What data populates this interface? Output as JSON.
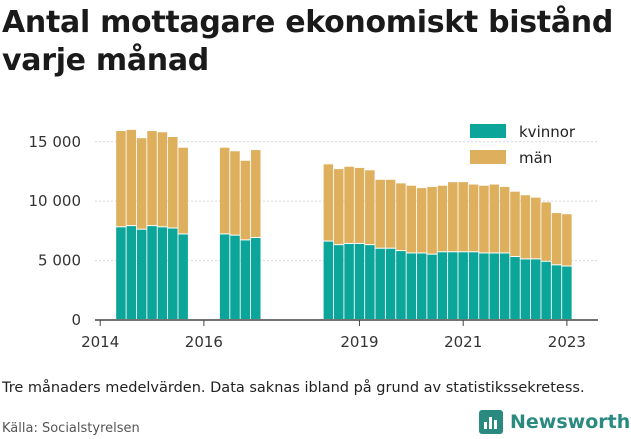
{
  "title": "Antal mottagare ekonomiskt bistånd varje månad",
  "note": "Tre månaders medelvärden. Data saknas ibland på grund av statistikssekretess.",
  "source": "Källa: Socialstyrelsen",
  "brand": {
    "name": "Newsworthy",
    "icon": "newsworthy-logo-icon",
    "color": "#2a8a80"
  },
  "chart_data": {
    "type": "bar",
    "stacked": true,
    "title": "Antal mottagare ekonomiskt bistånd varje månad",
    "xlabel": "",
    "ylabel": "",
    "ylim": [
      0,
      17000
    ],
    "y_ticks": [
      0,
      5000,
      10000,
      15000
    ],
    "y_tick_labels": [
      "0",
      "5 000",
      "10 000",
      "15 000"
    ],
    "x_ticks": [
      2014,
      2016,
      2019,
      2021,
      2023
    ],
    "x_tick_labels": [
      "2014",
      "2016",
      "2019",
      "2021",
      "2023"
    ],
    "grid": "horizontal",
    "legend_position": "top-right",
    "bars": [
      {
        "date": 2014.4,
        "kvinnor": 7800,
        "man": 8100
      },
      {
        "date": 2014.6,
        "kvinnor": 7900,
        "man": 8100
      },
      {
        "date": 2014.8,
        "kvinnor": 7600,
        "man": 7700
      },
      {
        "date": 2015.0,
        "kvinnor": 7900,
        "man": 8000
      },
      {
        "date": 2015.2,
        "kvinnor": 7800,
        "man": 8000
      },
      {
        "date": 2015.4,
        "kvinnor": 7700,
        "man": 7700
      },
      {
        "date": 2015.6,
        "kvinnor": 7200,
        "man": 7300
      },
      {
        "date": 2016.4,
        "kvinnor": 7200,
        "man": 7300
      },
      {
        "date": 2016.6,
        "kvinnor": 7100,
        "man": 7100
      },
      {
        "date": 2016.8,
        "kvinnor": 6700,
        "man": 6700
      },
      {
        "date": 2017.0,
        "kvinnor": 6900,
        "man": 7400
      },
      {
        "date": 2018.4,
        "kvinnor": 6600,
        "man": 6500
      },
      {
        "date": 2018.6,
        "kvinnor": 6300,
        "man": 6400
      },
      {
        "date": 2018.8,
        "kvinnor": 6400,
        "man": 6500
      },
      {
        "date": 2019.0,
        "kvinnor": 6400,
        "man": 6400
      },
      {
        "date": 2019.2,
        "kvinnor": 6300,
        "man": 6300
      },
      {
        "date": 2019.4,
        "kvinnor": 6000,
        "man": 5800
      },
      {
        "date": 2019.6,
        "kvinnor": 6000,
        "man": 5800
      },
      {
        "date": 2019.8,
        "kvinnor": 5800,
        "man": 5700
      },
      {
        "date": 2020.0,
        "kvinnor": 5600,
        "man": 5700
      },
      {
        "date": 2020.2,
        "kvinnor": 5600,
        "man": 5500
      },
      {
        "date": 2020.4,
        "kvinnor": 5500,
        "man": 5700
      },
      {
        "date": 2020.6,
        "kvinnor": 5700,
        "man": 5600
      },
      {
        "date": 2020.8,
        "kvinnor": 5700,
        "man": 5900
      },
      {
        "date": 2021.0,
        "kvinnor": 5700,
        "man": 5900
      },
      {
        "date": 2021.2,
        "kvinnor": 5700,
        "man": 5700
      },
      {
        "date": 2021.4,
        "kvinnor": 5600,
        "man": 5700
      },
      {
        "date": 2021.6,
        "kvinnor": 5600,
        "man": 5800
      },
      {
        "date": 2021.8,
        "kvinnor": 5600,
        "man": 5600
      },
      {
        "date": 2022.0,
        "kvinnor": 5300,
        "man": 5500
      },
      {
        "date": 2022.2,
        "kvinnor": 5100,
        "man": 5400
      },
      {
        "date": 2022.4,
        "kvinnor": 5100,
        "man": 5200
      },
      {
        "date": 2022.6,
        "kvinnor": 4900,
        "man": 5000
      },
      {
        "date": 2022.8,
        "kvinnor": 4600,
        "man": 4400
      },
      {
        "date": 2023.0,
        "kvinnor": 4500,
        "man": 4400
      }
    ],
    "series": [
      {
        "name": "kvinnor",
        "key": "kvinnor",
        "color": "#0ba59a"
      },
      {
        "name": "män",
        "key": "man",
        "color": "#deaf5c"
      }
    ]
  }
}
